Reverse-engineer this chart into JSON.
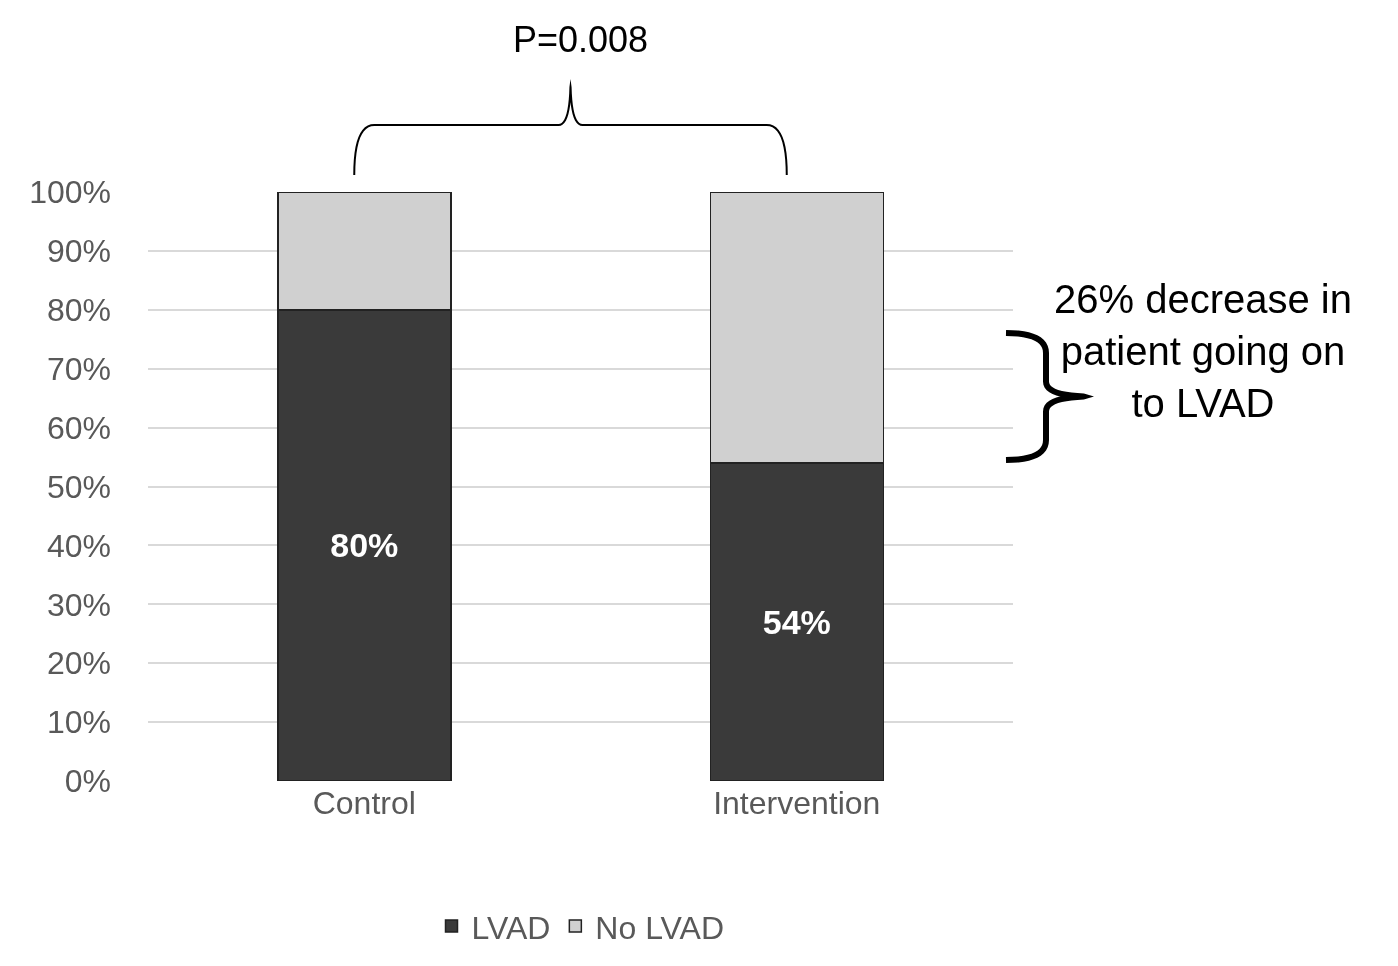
{
  "chart_data": {
    "type": "bar",
    "stacked": true,
    "categories": [
      "Control",
      "Intervention"
    ],
    "series": [
      {
        "name": "LVAD",
        "color": "#3a3a3a",
        "values": [
          80,
          54
        ],
        "value_labels": [
          "80%",
          "54%"
        ]
      },
      {
        "name": "No LVAD",
        "color": "#d0d0d0",
        "values": [
          20,
          46
        ]
      }
    ],
    "ylim": [
      0,
      100
    ],
    "yticks": [
      {
        "value": 0,
        "label": "0%"
      },
      {
        "value": 10,
        "label": "10%"
      },
      {
        "value": 20,
        "label": "20%"
      },
      {
        "value": 30,
        "label": "30%"
      },
      {
        "value": 40,
        "label": "40%"
      },
      {
        "value": 50,
        "label": "50%"
      },
      {
        "value": 60,
        "label": "60%"
      },
      {
        "value": 70,
        "label": "70%"
      },
      {
        "value": 80,
        "label": "80%"
      },
      {
        "value": 90,
        "label": "90%"
      },
      {
        "value": 100,
        "label": "100%"
      }
    ],
    "grid": "y",
    "legend": "bottom",
    "annotations": [
      "P=0.008",
      "26% decrease in patient going on to LVAD"
    ]
  }
}
